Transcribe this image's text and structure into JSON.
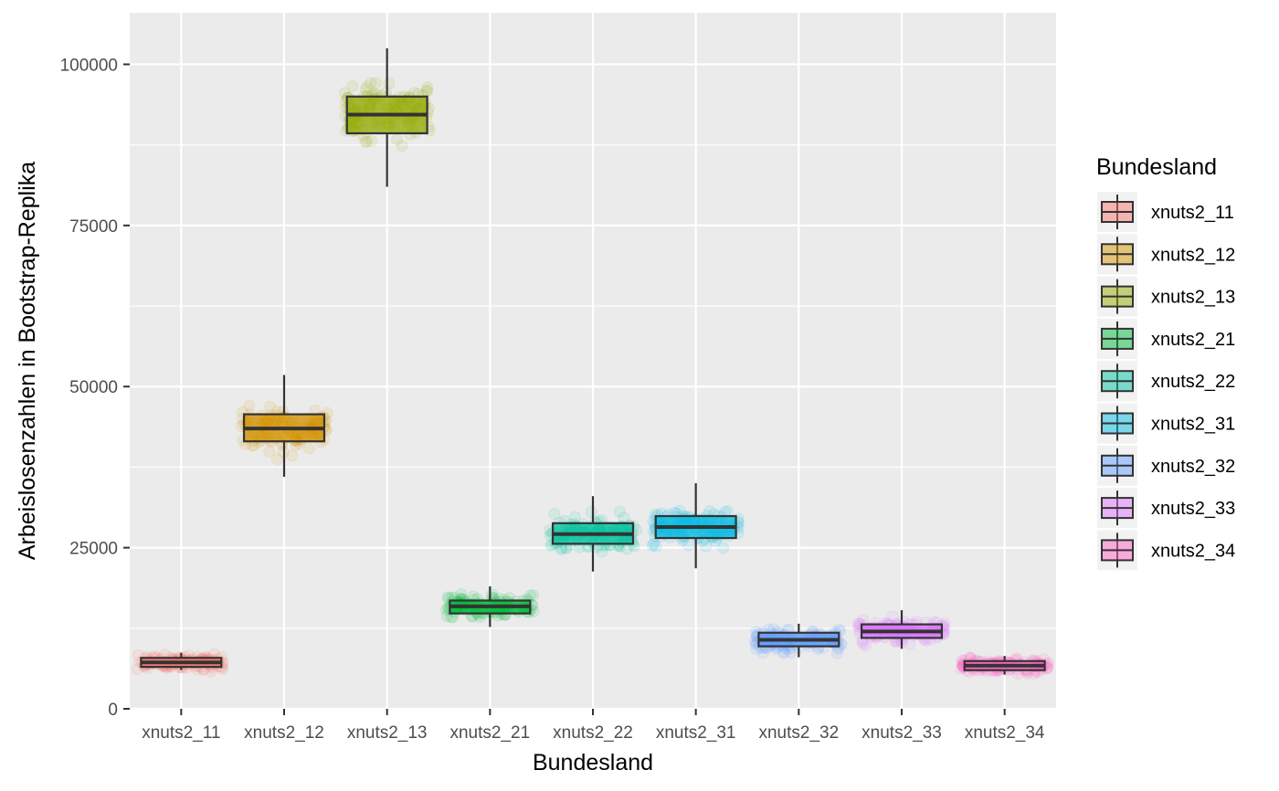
{
  "chart_data": {
    "type": "boxplot",
    "xlabel": "Bundesland",
    "ylabel": "Arbeislosenzahlen in Bootstrap-Replika",
    "ylim": [
      0,
      108000
    ],
    "yticks": [
      0,
      25000,
      50000,
      75000,
      100000
    ],
    "ytick_labels": [
      "0",
      "25000",
      "50000",
      "75000",
      "100000"
    ],
    "grid": true,
    "legend": {
      "title": "Bundesland",
      "position": "right"
    },
    "categories": [
      "xnuts2_11",
      "xnuts2_12",
      "xnuts2_13",
      "xnuts2_21",
      "xnuts2_22",
      "xnuts2_31",
      "xnuts2_32",
      "xnuts2_33",
      "xnuts2_34"
    ],
    "series": [
      {
        "name": "xnuts2_11",
        "color": "#F8766D",
        "min": 6000,
        "q1": 6500,
        "median": 7200,
        "q3": 7900,
        "max": 8700,
        "spread": 1900
      },
      {
        "name": "xnuts2_12",
        "color": "#D39200",
        "min": 36000,
        "q1": 41500,
        "median": 43500,
        "q3": 45700,
        "max": 51800,
        "spread": 8000
      },
      {
        "name": "xnuts2_13",
        "color": "#93AA00",
        "min": 81000,
        "q1": 89300,
        "median": 92200,
        "q3": 95000,
        "max": 102500,
        "spread": 13000
      },
      {
        "name": "xnuts2_21",
        "color": "#00BA38",
        "min": 12700,
        "q1": 14800,
        "median": 15900,
        "q3": 16800,
        "max": 19000,
        "spread": 3500
      },
      {
        "name": "xnuts2_22",
        "color": "#00C19F",
        "min": 21300,
        "q1": 25600,
        "median": 27100,
        "q3": 28800,
        "max": 33000,
        "spread": 6000
      },
      {
        "name": "xnuts2_31",
        "color": "#00B9E3",
        "min": 21800,
        "q1": 26500,
        "median": 28200,
        "q3": 29900,
        "max": 35000,
        "spread": 7000
      },
      {
        "name": "xnuts2_32",
        "color": "#619CFF",
        "min": 8000,
        "q1": 9700,
        "median": 10700,
        "q3": 11800,
        "max": 13200,
        "spread": 2800
      },
      {
        "name": "xnuts2_33",
        "color": "#DB72FB",
        "min": 9300,
        "q1": 11000,
        "median": 12000,
        "q3": 13100,
        "max": 15300,
        "spread": 3200
      },
      {
        "name": "xnuts2_34",
        "color": "#FF61C3",
        "min": 5300,
        "q1": 6000,
        "median": 6700,
        "q3": 7400,
        "max": 8200,
        "spread": 1700
      }
    ]
  }
}
